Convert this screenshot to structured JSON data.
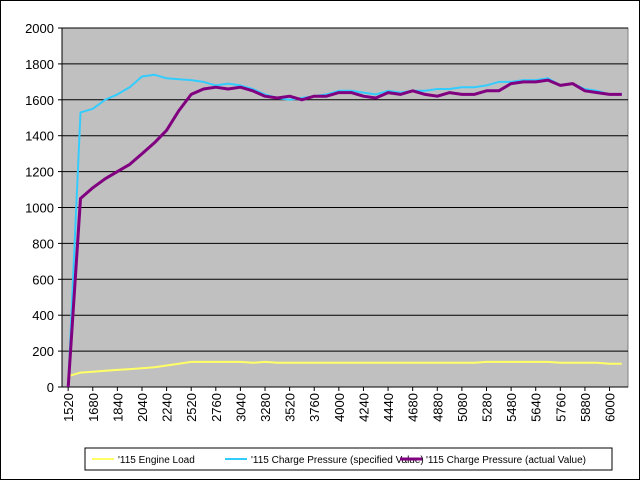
{
  "chart_data": {
    "type": "line",
    "categories": [
      "1520",
      null,
      "1680",
      null,
      "1840",
      null,
      "2040",
      null,
      "2240",
      null,
      "2520",
      null,
      "2760",
      null,
      "3040",
      null,
      "3280",
      null,
      "3520",
      null,
      "3760",
      null,
      "4000",
      null,
      "4240",
      null,
      "4440",
      null,
      "4680",
      null,
      "4880",
      null,
      "5080",
      null,
      "5280",
      null,
      "5480",
      null,
      "5640",
      null,
      "5760",
      null,
      "5880",
      null,
      "6000",
      null
    ],
    "series": [
      {
        "name": "'115 Engine Load",
        "color": "#ffff66",
        "values": [
          60,
          80,
          85,
          90,
          95,
          100,
          105,
          110,
          120,
          130,
          140,
          140,
          140,
          140,
          140,
          135,
          140,
          135,
          135,
          135,
          135,
          135,
          135,
          135,
          135,
          135,
          135,
          135,
          135,
          135,
          135,
          135,
          135,
          135,
          140,
          140,
          140,
          140,
          140,
          140,
          135,
          135,
          135,
          135,
          130,
          130
        ]
      },
      {
        "name": "'115 Charge Pressure (specified Value)",
        "color": "#33ccff",
        "values": [
          0,
          1530,
          1550,
          1600,
          1630,
          1670,
          1730,
          1740,
          1720,
          1715,
          1710,
          1700,
          1680,
          1690,
          1680,
          1660,
          1630,
          1610,
          1600,
          1610,
          1620,
          1630,
          1650,
          1650,
          1640,
          1630,
          1650,
          1640,
          1650,
          1650,
          1660,
          1660,
          1670,
          1670,
          1680,
          1700,
          1700,
          1710,
          1710,
          1720,
          1680,
          1690,
          1660,
          1650,
          1630,
          1630
        ]
      },
      {
        "name": "'115 Charge Pressure (actual Value)",
        "color": "#800080",
        "values": [
          0,
          1050,
          1110,
          1160,
          1200,
          1240,
          1300,
          1360,
          1430,
          1540,
          1630,
          1660,
          1670,
          1660,
          1670,
          1650,
          1620,
          1610,
          1620,
          1600,
          1620,
          1620,
          1640,
          1640,
          1620,
          1610,
          1640,
          1630,
          1650,
          1630,
          1620,
          1640,
          1630,
          1630,
          1650,
          1650,
          1690,
          1700,
          1700,
          1710,
          1680,
          1690,
          1650,
          1640,
          1630,
          1630
        ]
      }
    ],
    "ylim": [
      0,
      2000
    ],
    "yticks": [
      0,
      200,
      400,
      600,
      800,
      1000,
      1200,
      1400,
      1600,
      1800,
      2000
    ],
    "grid": true,
    "legend": "bottom"
  }
}
